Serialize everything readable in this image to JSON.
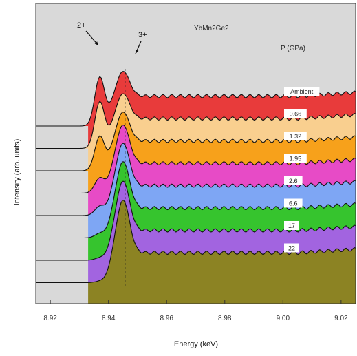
{
  "chart_data": {
    "type": "area",
    "title": "YbMn2Ge2",
    "xlabel": "Energy (keV)",
    "ylabel": "Intensity (arb. units)",
    "legend_title": "P (GPa)",
    "xlim": [
      8.915,
      9.025
    ],
    "x_ticks": [
      "8.92",
      "8.94",
      "8.96",
      "8.98",
      "9.00",
      "9.02"
    ],
    "x_tick_values": [
      8.92,
      8.94,
      8.96,
      8.98,
      9.0,
      9.02
    ],
    "grid": false,
    "annotations": {
      "yb2_label": "2+",
      "yb3_label": "3+",
      "yb2_energy": 8.937,
      "yb3_energy": 8.945
    },
    "series": [
      {
        "name": "Ambient",
        "color": "#e83b3b",
        "pressure_label": "Ambient",
        "peak2": 1.0,
        "peak3": 0.62,
        "plateau": 0.62
      },
      {
        "name": "0.66",
        "color": "#f9cf8f",
        "pressure_label": "0.66",
        "peak2": 0.95,
        "peak3": 0.62,
        "plateau": 0.62
      },
      {
        "name": "1.32",
        "color": "#f7a11b",
        "pressure_label": "1.32",
        "peak2": 0.7,
        "peak3": 0.72,
        "plateau": 0.62
      },
      {
        "name": "1.95",
        "color": "#e74bc6",
        "pressure_label": "1.95",
        "peak2": 0.3,
        "peak3": 0.95,
        "plateau": 0.62
      },
      {
        "name": "2.6",
        "color": "#7ea6f4",
        "pressure_label": "2.6",
        "peak2": 0.18,
        "peak3": 1.05,
        "plateau": 0.62
      },
      {
        "name": "6.6",
        "color": "#36c42e",
        "pressure_label": "6.6",
        "peak2": 0.08,
        "peak3": 1.15,
        "plateau": 0.62
      },
      {
        "name": "17",
        "color": "#a264e0",
        "pressure_label": "17",
        "peak2": 0.04,
        "peak3": 1.22,
        "plateau": 0.62
      },
      {
        "name": "22",
        "color": "#8c8323",
        "pressure_label": "22",
        "peak2": 0.02,
        "peak3": 1.3,
        "plateau": 0.62
      }
    ]
  }
}
